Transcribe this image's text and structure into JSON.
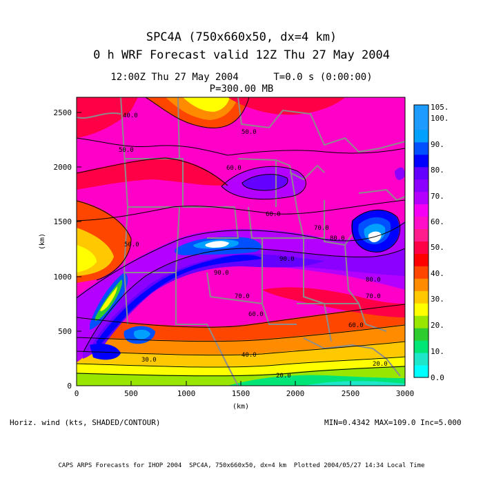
{
  "header": {
    "line1": "SPC4A (750x660x50, dx=4 km)",
    "line2": "0 h WRF Forecast valid 12Z Thu 27 May 2004",
    "line3": "12:00Z Thu 27 May 2004      T=0.0 s (0:00:00)",
    "line4": "P=300.00 MB"
  },
  "footer": {
    "field_label": "Horiz. wind (kts, SHADED/CONTOUR)",
    "stats": "MIN=0.4342 MAX=109.0 Inc=5.000",
    "credit": "CAPS ARPS Forecasts for IHOP 2004  SPC4A, 750x660x50, dx=4 km  Plotted 2004/05/27 14:34 Local Time"
  },
  "axes": {
    "xlabel": "(km)",
    "ylabel": "(km)",
    "xticks": [
      "0",
      "500",
      "1000",
      "1500",
      "2000",
      "2500",
      "3000"
    ],
    "yticks": [
      "0",
      "500",
      "1000",
      "1500",
      "2000",
      "2500"
    ],
    "xrange": [
      0,
      3000
    ],
    "yrange": [
      0,
      2640
    ]
  },
  "colorbar": {
    "labels": [
      "0.0",
      "10.",
      "20.",
      "30.",
      "40.",
      "50.",
      "60.",
      "70.",
      "80.",
      "90.",
      "100.",
      "105."
    ],
    "colors": [
      "#00ffff",
      "#1ee6c8",
      "#00e676",
      "#2fcc2f",
      "#99e600",
      "#ffff00",
      "#ffc800",
      "#ff8c00",
      "#ff4600",
      "#ff0000",
      "#ff0046",
      "#ff1e8c",
      "#ff0fc8",
      "#f500f5",
      "#b400ff",
      "#8c00ff",
      "#6400ff",
      "#0000ff",
      "#0050ff",
      "#00a0ff",
      "#1e9bff",
      "#1e9bff"
    ]
  },
  "contour_labels": [
    "40.0",
    "50.0",
    "50.0",
    "60.0",
    "60.0",
    "70.0",
    "80.0",
    "90.0",
    "50.0",
    "40.0",
    "30.0",
    "20.0",
    "20.0",
    "60.0",
    "70.0",
    "80.0",
    "60.0",
    "70.0",
    "90.0"
  ],
  "map": {
    "domain": "SPC4A",
    "field": "300 mb horizontal wind speed"
  }
}
